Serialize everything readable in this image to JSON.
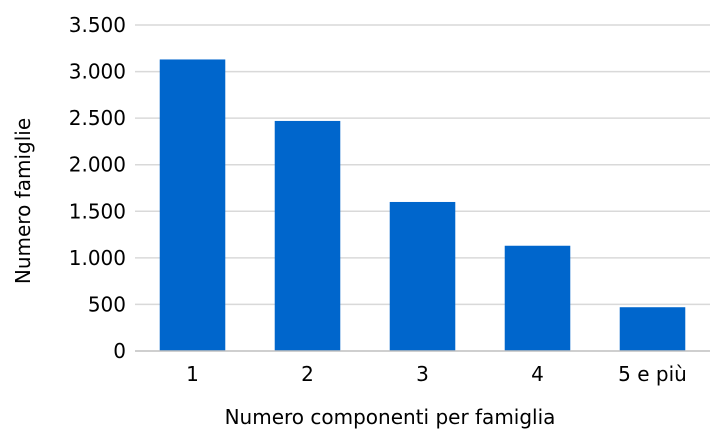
{
  "colors": {
    "bar": "#0066cc",
    "grid": "#d9d9d9",
    "axis": "#bfbfbf",
    "text": "#000000",
    "background": "#ffffff"
  },
  "chart_data": {
    "type": "bar",
    "categories": [
      "1",
      "2",
      "3",
      "4",
      "5 e più"
    ],
    "values": [
      3130,
      2470,
      1600,
      1130,
      470
    ],
    "xlabel": "Numero componenti per famiglia",
    "ylabel": "Numero famiglie",
    "ylim": [
      0,
      3500
    ],
    "yticks": [
      0,
      500,
      1000,
      1500,
      2000,
      2500,
      3000,
      3500
    ],
    "ytick_labels": [
      "0",
      "500",
      "1.000",
      "1.500",
      "2.000",
      "2.500",
      "3.000",
      "3.500"
    ],
    "grid": true,
    "legend": "none"
  }
}
